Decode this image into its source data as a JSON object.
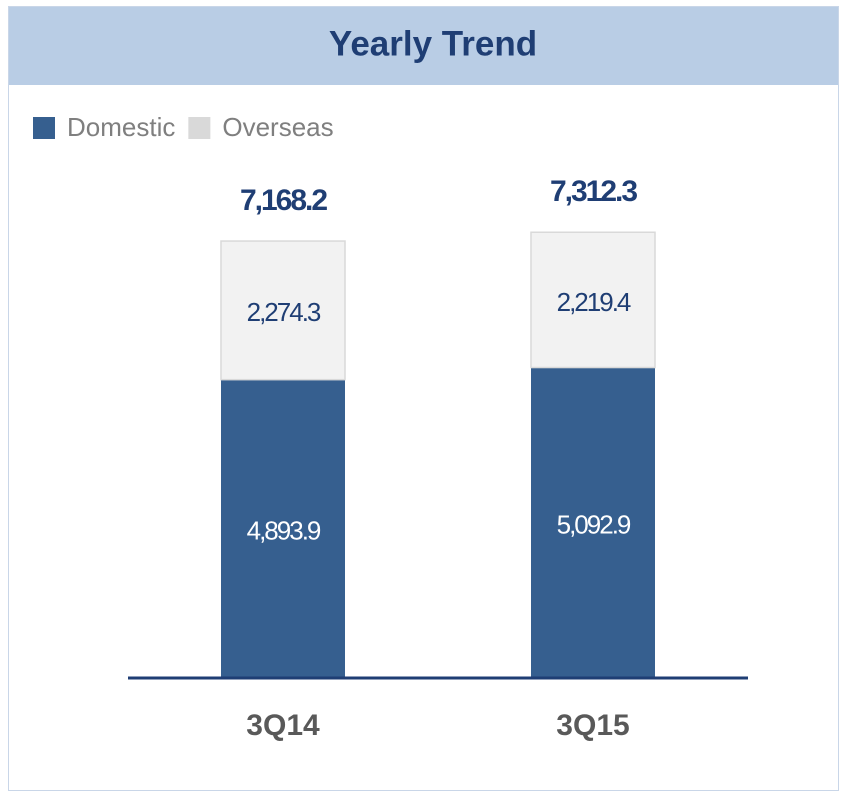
{
  "chart_data": {
    "type": "stacked_bar",
    "title": "Yearly Trend",
    "categories": [
      "3Q14",
      "3Q15"
    ],
    "series": [
      {
        "name": "Domestic",
        "color": "#365f8f",
        "values": [
          4893.9,
          5092.9
        ],
        "value_labels": [
          "4,893.9",
          "5,092.9"
        ]
      },
      {
        "name": "Overseas",
        "color": "#f2f2f2",
        "values": [
          2274.3,
          2219.4
        ],
        "value_labels": [
          "2,274.3",
          "2,219.4"
        ]
      }
    ],
    "totals": [
      7168.2,
      7312.3
    ],
    "total_labels": [
      "7,168.2",
      "7,312.3"
    ],
    "legend": "top-left"
  }
}
